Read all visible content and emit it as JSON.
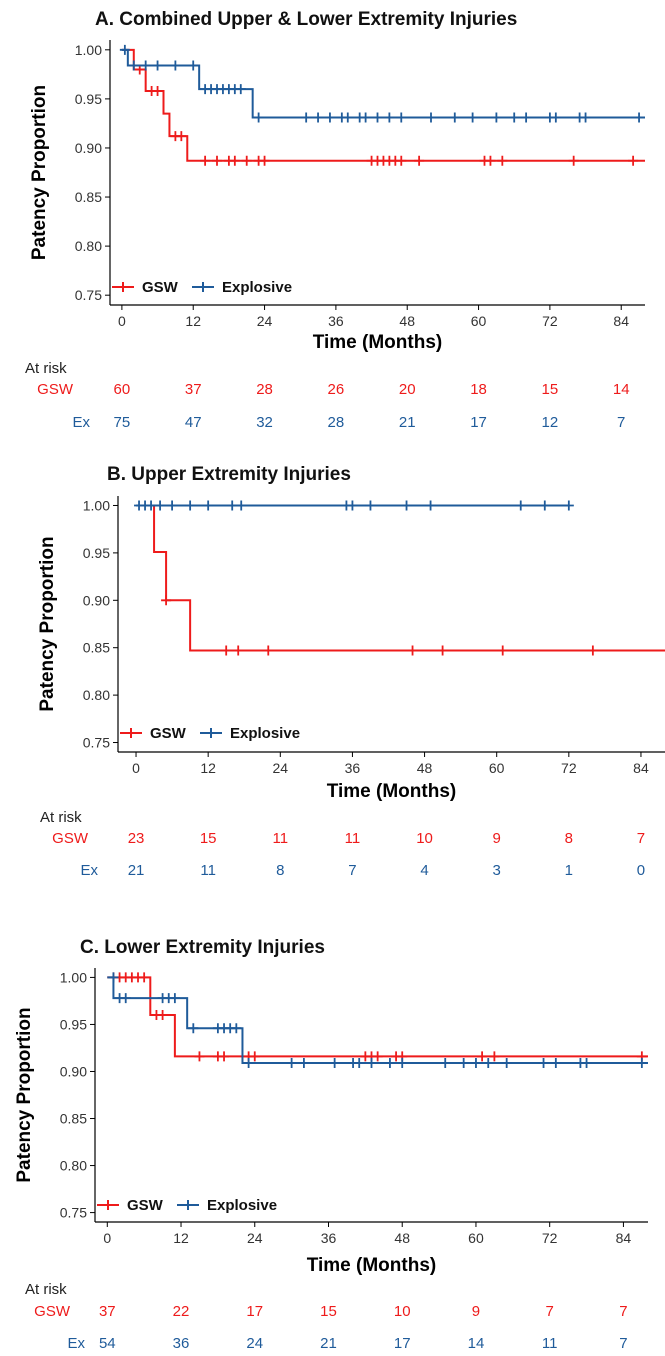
{
  "colors": {
    "gsw": "#ee1b1b",
    "explosive": "#1f5b9a",
    "axis": "#000000",
    "tick_text": "#333333"
  },
  "risk_header": "At risk",
  "charts": [
    {
      "id": "A",
      "title": "A. Combined Upper & Lower Extremity Injuries",
      "ylabel": "Patency Proportion",
      "xlabel": "Time (Months)",
      "xlim": [
        -2,
        88
      ],
      "ylim": [
        0.74,
        1.01
      ],
      "xticks": [
        "0",
        "12",
        "24",
        "36",
        "48",
        "60",
        "72",
        "84"
      ],
      "yticks": [
        "0.75",
        "0.80",
        "0.85",
        "0.90",
        "0.95",
        "1.00"
      ],
      "legend": {
        "position": "bottom-left",
        "gsw_label": "GSW",
        "explosive_label": "Explosive"
      },
      "at_risk": {
        "gsw_label": "GSW",
        "ex_label": "Ex",
        "gsw": [
          "60",
          "37",
          "28",
          "26",
          "20",
          "18",
          "15",
          "14"
        ],
        "ex": [
          "75",
          "47",
          "32",
          "28",
          "21",
          "17",
          "12",
          "7"
        ]
      }
    },
    {
      "id": "B",
      "title": "B. Upper Extremity Injuries",
      "ylabel": "Patency Proportion",
      "xlabel": "Time (Months)",
      "xlim": [
        -3,
        88
      ],
      "ylim": [
        0.74,
        1.01
      ],
      "xticks": [
        "0",
        "12",
        "24",
        "36",
        "48",
        "60",
        "72",
        "84"
      ],
      "yticks": [
        "0.75",
        "0.80",
        "0.85",
        "0.90",
        "0.95",
        "1.00"
      ],
      "legend": {
        "position": "bottom-left",
        "gsw_label": "GSW",
        "explosive_label": "Explosive"
      },
      "at_risk": {
        "gsw_label": "GSW",
        "ex_label": "Ex",
        "gsw": [
          "23",
          "15",
          "11",
          "11",
          "10",
          "9",
          "8",
          "7"
        ],
        "ex": [
          "21",
          "11",
          "8",
          "7",
          "4",
          "3",
          "1",
          "0"
        ]
      }
    },
    {
      "id": "C",
      "title": "C. Lower Extremity Injuries",
      "ylabel": "Patency Proportion",
      "xlabel": "Time (Months)",
      "xlim": [
        -2,
        88
      ],
      "ylim": [
        0.74,
        1.01
      ],
      "xticks": [
        "0",
        "12",
        "24",
        "36",
        "48",
        "60",
        "72",
        "84"
      ],
      "yticks": [
        "0.75",
        "0.80",
        "0.85",
        "0.90",
        "0.95",
        "1.00"
      ],
      "legend": {
        "position": "bottom-left",
        "gsw_label": "GSW",
        "explosive_label": "Explosive"
      },
      "at_risk": {
        "gsw_label": "GSW",
        "ex_label": "Ex",
        "gsw": [
          "37",
          "22",
          "17",
          "15",
          "10",
          "9",
          "7",
          "7"
        ],
        "ex": [
          "54",
          "36",
          "24",
          "21",
          "17",
          "14",
          "11",
          "7"
        ]
      }
    }
  ],
  "chart_data": [
    {
      "type": "line",
      "title": "A. Combined Upper & Lower Extremity Injuries",
      "xlabel": "Time (Months)",
      "ylabel": "Patency Proportion",
      "xlim": [
        -2,
        88
      ],
      "ylim": [
        0.74,
        1.01
      ],
      "series": [
        {
          "name": "GSW",
          "color": "#ee1b1b",
          "steps": [
            [
              0,
              1.0
            ],
            [
              2,
              0.98
            ],
            [
              4,
              0.958
            ],
            [
              7,
              0.935
            ],
            [
              8,
              0.912
            ],
            [
              11,
              0.887
            ],
            [
              88,
              0.887
            ]
          ],
          "censored": [
            [
              3,
              0.98
            ],
            [
              5,
              0.958
            ],
            [
              6,
              0.958
            ],
            [
              9,
              0.912
            ],
            [
              10,
              0.912
            ],
            [
              14,
              0.887
            ],
            [
              16,
              0.887
            ],
            [
              18,
              0.887
            ],
            [
              19,
              0.887
            ],
            [
              21,
              0.887
            ],
            [
              23,
              0.887
            ],
            [
              24,
              0.887
            ],
            [
              42,
              0.887
            ],
            [
              43,
              0.887
            ],
            [
              44,
              0.887
            ],
            [
              45,
              0.887
            ],
            [
              46,
              0.887
            ],
            [
              47,
              0.887
            ],
            [
              50,
              0.887
            ],
            [
              61,
              0.887
            ],
            [
              62,
              0.887
            ],
            [
              64,
              0.887
            ],
            [
              76,
              0.887
            ],
            [
              86,
              0.887
            ]
          ]
        },
        {
          "name": "Explosive",
          "color": "#1f5b9a",
          "steps": [
            [
              0,
              1.0
            ],
            [
              1,
              0.984
            ],
            [
              13,
              0.96
            ],
            [
              22,
              0.931
            ],
            [
              88,
              0.931
            ]
          ],
          "censored": [
            [
              0.5,
              1.0
            ],
            [
              2,
              0.984
            ],
            [
              4,
              0.984
            ],
            [
              6,
              0.984
            ],
            [
              9,
              0.984
            ],
            [
              12,
              0.984
            ],
            [
              14,
              0.96
            ],
            [
              15,
              0.96
            ],
            [
              16,
              0.96
            ],
            [
              17,
              0.96
            ],
            [
              18,
              0.96
            ],
            [
              19,
              0.96
            ],
            [
              20,
              0.96
            ],
            [
              23,
              0.931
            ],
            [
              31,
              0.931
            ],
            [
              33,
              0.931
            ],
            [
              35,
              0.931
            ],
            [
              37,
              0.931
            ],
            [
              38,
              0.931
            ],
            [
              40,
              0.931
            ],
            [
              41,
              0.931
            ],
            [
              43,
              0.931
            ],
            [
              45,
              0.931
            ],
            [
              47,
              0.931
            ],
            [
              52,
              0.931
            ],
            [
              56,
              0.931
            ],
            [
              59,
              0.931
            ],
            [
              63,
              0.931
            ],
            [
              66,
              0.931
            ],
            [
              68,
              0.931
            ],
            [
              72,
              0.931
            ],
            [
              73,
              0.931
            ],
            [
              77,
              0.931
            ],
            [
              78,
              0.931
            ],
            [
              87,
              0.931
            ]
          ]
        }
      ]
    },
    {
      "type": "line",
      "title": "B. Upper Extremity Injuries",
      "xlabel": "Time (Months)",
      "ylabel": "Patency Proportion",
      "xlim": [
        -3,
        88
      ],
      "ylim": [
        0.74,
        1.01
      ],
      "series": [
        {
          "name": "GSW",
          "color": "#ee1b1b",
          "steps": [
            [
              0,
              1.0
            ],
            [
              3,
              0.951
            ],
            [
              5,
              0.9
            ],
            [
              9,
              0.847
            ],
            [
              88,
              0.847
            ]
          ],
          "censored": [
            [
              5,
              0.9
            ],
            [
              15,
              0.847
            ],
            [
              17,
              0.847
            ],
            [
              22,
              0.847
            ],
            [
              46,
              0.847
            ],
            [
              51,
              0.847
            ],
            [
              61,
              0.847
            ],
            [
              76,
              0.847
            ]
          ]
        },
        {
          "name": "Explosive",
          "color": "#1f5b9a",
          "steps": [
            [
              0,
              1.0
            ],
            [
              72,
              1.0
            ]
          ],
          "censored": [
            [
              0.5,
              1.0
            ],
            [
              1.5,
              1.0
            ],
            [
              2.5,
              1.0
            ],
            [
              4,
              1.0
            ],
            [
              6,
              1.0
            ],
            [
              9,
              1.0
            ],
            [
              12,
              1.0
            ],
            [
              16,
              1.0
            ],
            [
              17.5,
              1.0
            ],
            [
              35,
              1.0
            ],
            [
              36,
              1.0
            ],
            [
              39,
              1.0
            ],
            [
              45,
              1.0
            ],
            [
              49,
              1.0
            ],
            [
              64,
              1.0
            ],
            [
              68,
              1.0
            ],
            [
              72,
              1.0
            ]
          ]
        }
      ]
    },
    {
      "type": "line",
      "title": "C. Lower Extremity Injuries",
      "xlabel": "Time (Months)",
      "ylabel": "Patency Proportion",
      "xlim": [
        -2,
        88
      ],
      "ylim": [
        0.74,
        1.01
      ],
      "series": [
        {
          "name": "GSW",
          "color": "#ee1b1b",
          "steps": [
            [
              0,
              1.0
            ],
            [
              7,
              0.96
            ],
            [
              11,
              0.916
            ],
            [
              88,
              0.916
            ]
          ],
          "censored": [
            [
              1,
              1.0
            ],
            [
              2,
              1.0
            ],
            [
              3,
              1.0
            ],
            [
              4,
              1.0
            ],
            [
              5,
              1.0
            ],
            [
              6,
              1.0
            ],
            [
              8,
              0.96
            ],
            [
              9,
              0.96
            ],
            [
              15,
              0.916
            ],
            [
              18,
              0.916
            ],
            [
              19,
              0.916
            ],
            [
              23,
              0.916
            ],
            [
              24,
              0.916
            ],
            [
              42,
              0.916
            ],
            [
              43,
              0.916
            ],
            [
              44,
              0.916
            ],
            [
              47,
              0.916
            ],
            [
              48,
              0.916
            ],
            [
              61,
              0.916
            ],
            [
              63,
              0.916
            ],
            [
              87,
              0.916
            ]
          ]
        },
        {
          "name": "Explosive",
          "color": "#1f5b9a",
          "steps": [
            [
              0,
              1.0
            ],
            [
              1,
              0.978
            ],
            [
              13,
              0.946
            ],
            [
              22,
              0.909
            ],
            [
              88,
              0.909
            ]
          ],
          "censored": [
            [
              1,
              1.0
            ],
            [
              2,
              0.978
            ],
            [
              3,
              0.978
            ],
            [
              9,
              0.978
            ],
            [
              10,
              0.978
            ],
            [
              11,
              0.978
            ],
            [
              14,
              0.946
            ],
            [
              18,
              0.946
            ],
            [
              19,
              0.946
            ],
            [
              20,
              0.946
            ],
            [
              21,
              0.946
            ],
            [
              23,
              0.909
            ],
            [
              30,
              0.909
            ],
            [
              32,
              0.909
            ],
            [
              37,
              0.909
            ],
            [
              40,
              0.909
            ],
            [
              41,
              0.909
            ],
            [
              43,
              0.909
            ],
            [
              46,
              0.909
            ],
            [
              48,
              0.909
            ],
            [
              55,
              0.909
            ],
            [
              58,
              0.909
            ],
            [
              60,
              0.909
            ],
            [
              62,
              0.909
            ],
            [
              65,
              0.909
            ],
            [
              71,
              0.909
            ],
            [
              73,
              0.909
            ],
            [
              77,
              0.909
            ],
            [
              78,
              0.909
            ],
            [
              87,
              0.909
            ]
          ]
        }
      ]
    }
  ]
}
